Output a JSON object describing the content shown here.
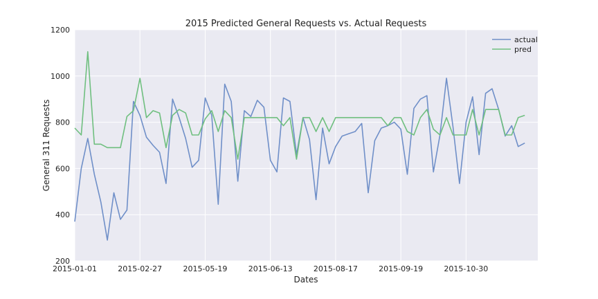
{
  "chart_data": {
    "type": "line",
    "title": "2015 Predicted General Requests vs. Actual Requests",
    "xlabel": "Dates",
    "ylabel": "General 311 Requests",
    "ylim": [
      200,
      1200
    ],
    "xlim": [
      0,
      71
    ],
    "yticks": [
      200,
      400,
      600,
      800,
      1000,
      1200
    ],
    "xticks": [
      {
        "pos": 0,
        "label": "2015-01-01"
      },
      {
        "pos": 10,
        "label": "2015-02-27"
      },
      {
        "pos": 20,
        "label": "2015-05-19"
      },
      {
        "pos": 30,
        "label": "2015-06-13"
      },
      {
        "pos": 40,
        "label": "2015-08-17"
      },
      {
        "pos": 50,
        "label": "2015-09-19"
      },
      {
        "pos": 60,
        "label": "2015-10-30"
      }
    ],
    "grid": true,
    "legend": "top-right",
    "series": [
      {
        "name": "actual",
        "color": "#6f8fc8",
        "values": [
          370,
          600,
          730,
          575,
          455,
          290,
          495,
          380,
          420,
          890,
          830,
          735,
          700,
          670,
          535,
          900,
          820,
          730,
          605,
          635,
          905,
          830,
          445,
          965,
          890,
          545,
          850,
          825,
          895,
          865,
          635,
          585,
          905,
          890,
          660,
          820,
          725,
          465,
          775,
          620,
          695,
          740,
          750,
          760,
          795,
          495,
          720,
          775,
          785,
          800,
          770,
          575,
          860,
          900,
          915,
          585,
          745,
          990,
          780,
          535,
          800,
          910,
          660,
          925,
          945,
          855,
          740,
          785,
          695,
          710
        ]
      },
      {
        "name": "pred",
        "color": "#6fbf7f",
        "values": [
          775,
          745,
          1105,
          705,
          705,
          690,
          690,
          690,
          825,
          850,
          990,
          820,
          850,
          840,
          690,
          830,
          855,
          840,
          745,
          745,
          815,
          850,
          760,
          850,
          820,
          640,
          820,
          820,
          820,
          820,
          820,
          820,
          785,
          820,
          640,
          820,
          820,
          760,
          820,
          760,
          820,
          820,
          820,
          820,
          820,
          820,
          820,
          820,
          785,
          820,
          820,
          760,
          745,
          820,
          855,
          770,
          745,
          820,
          745,
          745,
          745,
          855,
          745,
          855,
          855,
          855,
          745,
          745,
          820,
          830
        ]
      }
    ]
  }
}
